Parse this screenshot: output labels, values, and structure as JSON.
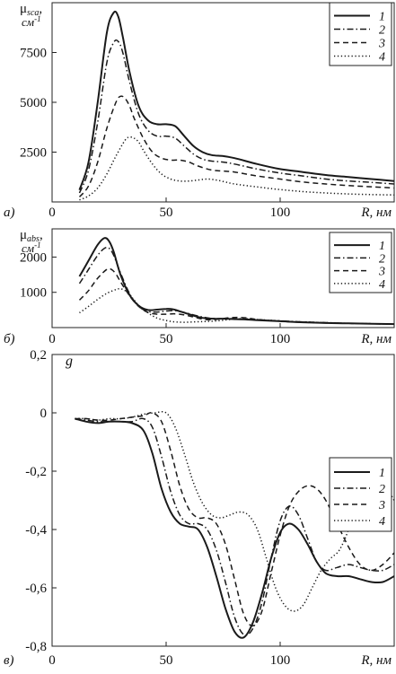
{
  "chart_data": [
    {
      "type": "line",
      "panel_label": "а)",
      "ylabel": "μsca, см-1",
      "ylabel_main": "μ",
      "ylabel_sub": "sca",
      "ylabel_unit": "см",
      "ylabel_exp": "-1",
      "xlabel": "R, нм",
      "xlim": [
        0,
        150
      ],
      "ylim": [
        0,
        10000
      ],
      "x_ticks": [
        0,
        50,
        100
      ],
      "x_tick_labels": [
        "0",
        "50",
        "100"
      ],
      "y_ticks": [
        2500,
        5000,
        7500
      ],
      "y_tick_labels": [
        "2500",
        "5000",
        "7500"
      ],
      "legend_position": "top-right",
      "series": [
        {
          "name": "1",
          "style": "solid",
          "x": [
            12,
            16,
            20,
            24,
            27,
            29,
            31,
            34,
            38,
            42,
            46,
            50,
            54,
            58,
            62,
            66,
            70,
            75,
            80,
            90,
            100,
            110,
            120,
            130,
            140,
            150
          ],
          "values": [
            600,
            2000,
            5000,
            8500,
            9500,
            9300,
            8300,
            6500,
            4800,
            4100,
            3900,
            3900,
            3800,
            3300,
            2800,
            2500,
            2350,
            2300,
            2200,
            1900,
            1650,
            1500,
            1350,
            1250,
            1150,
            1050
          ]
        },
        {
          "name": "2",
          "style": "dashdot",
          "x": [
            12,
            16,
            20,
            24,
            27,
            29,
            31,
            34,
            38,
            42,
            46,
            50,
            54,
            58,
            62,
            66,
            70,
            75,
            80,
            90,
            100,
            110,
            120,
            130,
            140,
            150
          ],
          "values": [
            450,
            1600,
            4000,
            7000,
            8000,
            8050,
            7500,
            6000,
            4400,
            3600,
            3300,
            3300,
            3200,
            2800,
            2400,
            2150,
            2050,
            2000,
            1900,
            1650,
            1450,
            1300,
            1150,
            1050,
            980,
            900
          ]
        },
        {
          "name": "3",
          "style": "dash",
          "x": [
            12,
            16,
            20,
            24,
            28,
            30,
            32,
            34,
            36,
            40,
            44,
            48,
            52,
            56,
            60,
            64,
            70,
            75,
            80,
            90,
            100,
            110,
            120,
            130,
            140,
            150
          ],
          "values": [
            250,
            800,
            2000,
            3700,
            5000,
            5300,
            5200,
            4800,
            4200,
            3200,
            2500,
            2200,
            2100,
            2100,
            2000,
            1800,
            1600,
            1550,
            1500,
            1300,
            1150,
            1000,
            900,
            820,
            760,
            700
          ]
        },
        {
          "name": "4",
          "style": "dot",
          "x": [
            12,
            16,
            20,
            24,
            28,
            32,
            34,
            36,
            38,
            40,
            44,
            48,
            52,
            56,
            60,
            64,
            68,
            72,
            76,
            80,
            90,
            100,
            110,
            120,
            130,
            140,
            150
          ],
          "values": [
            100,
            300,
            700,
            1400,
            2300,
            3100,
            3250,
            3200,
            3000,
            2600,
            1900,
            1400,
            1150,
            1050,
            1050,
            1100,
            1150,
            1100,
            1000,
            900,
            750,
            620,
            520,
            450,
            400,
            370,
            350
          ]
        }
      ]
    },
    {
      "type": "line",
      "panel_label": "б)",
      "ylabel": "μabs, см-1",
      "ylabel_main": "μ",
      "ylabel_sub": "abs",
      "ylabel_unit": "см",
      "ylabel_exp": "-1",
      "xlabel": "R, нм",
      "xlim": [
        0,
        150
      ],
      "ylim": [
        0,
        2800
      ],
      "x_ticks": [
        0,
        50,
        100
      ],
      "x_tick_labels": [
        "0",
        "50",
        "100"
      ],
      "y_ticks": [
        1000,
        2000
      ],
      "y_tick_labels": [
        "1000",
        "2000"
      ],
      "legend_position": "top-right",
      "series": [
        {
          "name": "1",
          "style": "solid",
          "x": [
            12,
            16,
            20,
            23,
            25,
            27,
            30,
            34,
            38,
            42,
            46,
            50,
            53,
            56,
            60,
            64,
            68,
            72,
            76,
            80,
            85,
            90,
            100,
            110,
            120,
            130,
            140,
            150
          ],
          "values": [
            1450,
            1900,
            2350,
            2540,
            2450,
            2150,
            1500,
            920,
            620,
            500,
            510,
            530,
            520,
            460,
            380,
            300,
            260,
            250,
            250,
            240,
            230,
            210,
            180,
            150,
            130,
            120,
            110,
            100
          ]
        },
        {
          "name": "2",
          "style": "dashdot",
          "x": [
            12,
            16,
            20,
            23,
            25,
            27,
            30,
            34,
            38,
            42,
            46,
            50,
            54,
            58,
            62,
            66,
            70,
            75,
            80,
            85,
            90,
            100,
            110,
            120,
            130,
            140,
            150
          ],
          "values": [
            1250,
            1650,
            2050,
            2250,
            2250,
            2050,
            1550,
            960,
            600,
            460,
            440,
            470,
            480,
            430,
            360,
            300,
            260,
            250,
            250,
            240,
            220,
            190,
            160,
            140,
            120,
            110,
            100
          ]
        },
        {
          "name": "3",
          "style": "dash",
          "x": [
            12,
            16,
            20,
            24,
            26,
            28,
            30,
            34,
            38,
            42,
            46,
            50,
            54,
            58,
            62,
            66,
            70,
            74,
            78,
            82,
            86,
            90,
            100,
            110,
            120,
            130,
            140,
            150
          ],
          "values": [
            780,
            1050,
            1400,
            1650,
            1650,
            1520,
            1300,
            900,
            600,
            430,
            380,
            380,
            390,
            360,
            300,
            240,
            220,
            250,
            280,
            290,
            270,
            230,
            180,
            150,
            130,
            120,
            110,
            100
          ]
        },
        {
          "name": "4",
          "style": "dot",
          "x": [
            12,
            16,
            20,
            24,
            28,
            30,
            32,
            34,
            36,
            38,
            42,
            46,
            50,
            54,
            58,
            62,
            66,
            70,
            74,
            78,
            82,
            86,
            90,
            95,
            100,
            110,
            120,
            130,
            140,
            150
          ],
          "values": [
            420,
            600,
            800,
            970,
            1080,
            1100,
            1050,
            930,
            780,
            630,
            420,
            270,
            200,
            160,
            150,
            160,
            170,
            180,
            200,
            230,
            250,
            250,
            230,
            210,
            190,
            160,
            140,
            120,
            110,
            100
          ]
        }
      ]
    },
    {
      "type": "line",
      "panel_label": "в)",
      "ylabel": "g",
      "xlabel": "R, нм",
      "xlim": [
        0,
        150
      ],
      "ylim": [
        -0.8,
        0.2
      ],
      "x_ticks": [
        0,
        50,
        100
      ],
      "x_tick_labels": [
        "0",
        "50",
        "100"
      ],
      "y_ticks": [
        0.2,
        0,
        -0.2,
        -0.4,
        -0.6,
        -0.8
      ],
      "y_tick_labels": [
        "0,2",
        "0",
        "-0,2",
        "-0,4",
        "-0,6",
        "-0,8"
      ],
      "legend_position": "top-right",
      "series": [
        {
          "name": "1",
          "style": "solid",
          "x": [
            10,
            15,
            20,
            25,
            30,
            35,
            40,
            44,
            48,
            52,
            56,
            60,
            64,
            68,
            72,
            76,
            80,
            84,
            88,
            92,
            96,
            100,
            104,
            108,
            112,
            116,
            120,
            125,
            130,
            135,
            140,
            145,
            150
          ],
          "values": [
            -0.02,
            -0.03,
            -0.035,
            -0.03,
            -0.03,
            -0.035,
            -0.06,
            -0.14,
            -0.26,
            -0.34,
            -0.38,
            -0.39,
            -0.4,
            -0.46,
            -0.56,
            -0.67,
            -0.75,
            -0.77,
            -0.72,
            -0.62,
            -0.5,
            -0.41,
            -0.38,
            -0.4,
            -0.45,
            -0.51,
            -0.55,
            -0.56,
            -0.56,
            -0.57,
            -0.58,
            -0.58,
            -0.56
          ]
        },
        {
          "name": "2",
          "style": "dashdot",
          "x": [
            10,
            15,
            20,
            25,
            30,
            35,
            40,
            44,
            48,
            52,
            56,
            60,
            64,
            68,
            72,
            76,
            80,
            84,
            88,
            92,
            96,
            100,
            104,
            108,
            112,
            116,
            120,
            125,
            130,
            135,
            140,
            145,
            150
          ],
          "values": [
            -0.02,
            -0.025,
            -0.03,
            -0.03,
            -0.03,
            -0.03,
            -0.02,
            -0.05,
            -0.15,
            -0.27,
            -0.35,
            -0.38,
            -0.38,
            -0.4,
            -0.47,
            -0.58,
            -0.7,
            -0.76,
            -0.74,
            -0.65,
            -0.5,
            -0.37,
            -0.32,
            -0.35,
            -0.43,
            -0.51,
            -0.54,
            -0.53,
            -0.52,
            -0.53,
            -0.54,
            -0.54,
            -0.52
          ]
        },
        {
          "name": "3",
          "style": "dash",
          "x": [
            10,
            15,
            20,
            25,
            30,
            35,
            40,
            44,
            48,
            52,
            56,
            60,
            64,
            68,
            72,
            76,
            80,
            84,
            88,
            92,
            96,
            100,
            104,
            108,
            112,
            116,
            120,
            125,
            130,
            135,
            140,
            145,
            150
          ],
          "values": [
            -0.02,
            -0.02,
            -0.025,
            -0.025,
            -0.02,
            -0.015,
            -0.01,
            0,
            -0.03,
            -0.13,
            -0.25,
            -0.33,
            -0.36,
            -0.36,
            -0.38,
            -0.45,
            -0.57,
            -0.69,
            -0.73,
            -0.68,
            -0.55,
            -0.42,
            -0.32,
            -0.27,
            -0.25,
            -0.26,
            -0.3,
            -0.38,
            -0.46,
            -0.52,
            -0.54,
            -0.52,
            -0.48
          ]
        },
        {
          "name": "4",
          "style": "dot",
          "x": [
            10,
            15,
            20,
            25,
            30,
            35,
            40,
            45,
            50,
            54,
            58,
            62,
            66,
            70,
            74,
            78,
            82,
            86,
            90,
            94,
            98,
            102,
            106,
            110,
            114,
            118,
            122,
            126,
            130,
            134,
            138,
            142,
            146,
            150
          ],
          "values": [
            -0.02,
            -0.02,
            -0.025,
            -0.02,
            -0.02,
            -0.015,
            -0.005,
            0,
            0,
            -0.05,
            -0.14,
            -0.24,
            -0.31,
            -0.35,
            -0.36,
            -0.35,
            -0.34,
            -0.35,
            -0.4,
            -0.5,
            -0.6,
            -0.66,
            -0.68,
            -0.66,
            -0.6,
            -0.54,
            -0.5,
            -0.47,
            -0.4,
            -0.3,
            -0.23,
            -0.22,
            -0.25,
            -0.3
          ]
        }
      ]
    }
  ]
}
